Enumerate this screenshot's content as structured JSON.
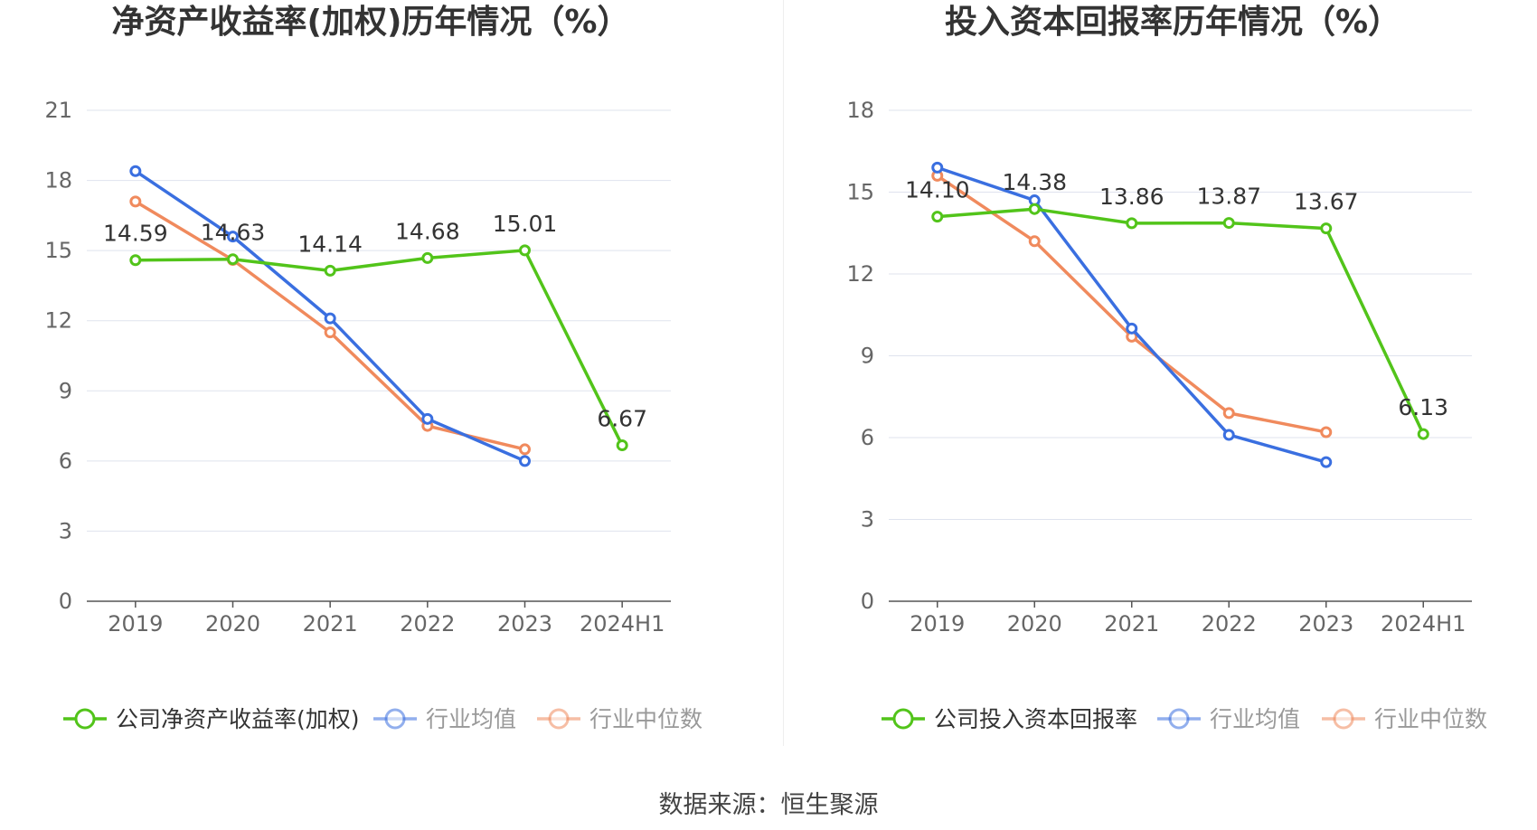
{
  "source_label": "数据来源：恒生聚源",
  "colors": {
    "company": "#52c41a",
    "average": "#3a6fe0",
    "median": "#f08a5d",
    "grid": "#dfe3ee",
    "axis": "#555555",
    "label": "#888888"
  },
  "chart_data": [
    {
      "type": "line",
      "title": "净资产收益率(加权)历年情况（%）",
      "categories": [
        "2019",
        "2020",
        "2021",
        "2022",
        "2023",
        "2024H1"
      ],
      "yticks": [
        0,
        3,
        6,
        9,
        12,
        15,
        18,
        21
      ],
      "ylim": [
        0,
        21
      ],
      "grid": true,
      "legend_position": "bottom",
      "series": [
        {
          "name": "公司净资产收益率(加权)",
          "key": "company",
          "values": [
            14.59,
            14.63,
            14.14,
            14.68,
            15.01,
            6.67
          ],
          "labels": [
            "14.59",
            "14.63",
            "14.14",
            "14.68",
            "15.01",
            "6.67"
          ]
        },
        {
          "name": "行业均值",
          "key": "average",
          "values": [
            18.4,
            15.6,
            12.1,
            7.8,
            6.0,
            null
          ]
        },
        {
          "name": "行业中位数",
          "key": "median",
          "values": [
            17.1,
            14.6,
            11.5,
            7.5,
            6.5,
            null
          ]
        }
      ]
    },
    {
      "type": "line",
      "title": "投入资本回报率历年情况（%）",
      "categories": [
        "2019",
        "2020",
        "2021",
        "2022",
        "2023",
        "2024H1"
      ],
      "yticks": [
        0,
        3,
        6,
        9,
        12,
        15,
        18
      ],
      "ylim": [
        0,
        18
      ],
      "grid": true,
      "legend_position": "bottom",
      "series": [
        {
          "name": "公司投入资本回报率",
          "key": "company",
          "values": [
            14.1,
            14.38,
            13.86,
            13.87,
            13.67,
            6.13
          ],
          "labels": [
            "14.10",
            "14.38",
            "13.86",
            "13.87",
            "13.67",
            "6.13"
          ]
        },
        {
          "name": "行业均值",
          "key": "average",
          "values": [
            15.9,
            14.7,
            10.0,
            6.1,
            5.1,
            null
          ]
        },
        {
          "name": "行业中位数",
          "key": "median",
          "values": [
            15.6,
            13.2,
            9.7,
            6.9,
            6.2,
            null
          ]
        }
      ]
    }
  ]
}
